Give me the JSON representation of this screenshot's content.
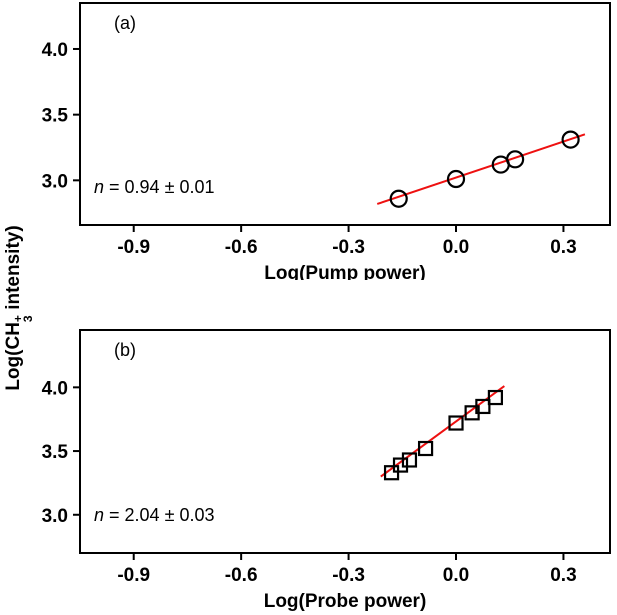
{
  "figure": {
    "y_axis_label": {
      "prefix": "Log(CH",
      "sup": "+",
      "sub": "3",
      "suffix": " intensity)"
    }
  },
  "colors": {
    "fit_line": "#ee1111",
    "marker": "#000000",
    "frame": "#000000",
    "background": "#ffffff"
  },
  "chart_data": [
    {
      "type": "scatter",
      "panel_label": "(a)",
      "marker": "circle",
      "marker_color": "#000000",
      "xlabel": "Log(Pump power)",
      "xlim": [
        -1.05,
        0.43
      ],
      "ylim": [
        2.66,
        4.35
      ],
      "xticks": [
        -0.9,
        -0.6,
        -0.3,
        0.0,
        0.3
      ],
      "xtick_labels": [
        "-0.9",
        "-0.6",
        "-0.3",
        "0.0",
        "0.3"
      ],
      "yticks": [
        3.0,
        3.5,
        4.0
      ],
      "ytick_labels": [
        "3.0",
        "3.5",
        "4.0"
      ],
      "points": [
        [
          -0.16,
          2.86
        ],
        [
          0.0,
          3.01
        ],
        [
          0.125,
          3.12
        ],
        [
          0.165,
          3.16
        ],
        [
          0.32,
          3.31
        ]
      ],
      "fit_line": {
        "x1": -0.22,
        "y1": 2.82,
        "x2": 0.36,
        "y2": 3.35,
        "color": "#ee1111"
      },
      "annotation": {
        "var": "n",
        "rest": " = 0.94 ± 0.01"
      }
    },
    {
      "type": "scatter",
      "panel_label": "(b)",
      "marker": "square",
      "marker_color": "#000000",
      "xlabel": "Log(Probe power)",
      "xlim": [
        -1.05,
        0.43
      ],
      "ylim": [
        2.7,
        4.45
      ],
      "xticks": [
        -0.9,
        -0.6,
        -0.3,
        0.0,
        0.3
      ],
      "xtick_labels": [
        "-0.9",
        "-0.6",
        "-0.3",
        "0.0",
        "0.3"
      ],
      "yticks": [
        3.0,
        3.5,
        4.0
      ],
      "ytick_labels": [
        "3.0",
        "3.5",
        "4.0"
      ],
      "points": [
        [
          -0.18,
          3.33
        ],
        [
          -0.155,
          3.39
        ],
        [
          -0.13,
          3.43
        ],
        [
          -0.085,
          3.52
        ],
        [
          0.0,
          3.72
        ],
        [
          0.045,
          3.8
        ],
        [
          0.075,
          3.85
        ],
        [
          0.11,
          3.92
        ]
      ],
      "fit_line": {
        "x1": -0.21,
        "y1": 3.3,
        "x2": 0.135,
        "y2": 4.01,
        "color": "#ee1111"
      },
      "annotation": {
        "var": "n",
        "rest": " = 2.04 ± 0.03"
      }
    }
  ]
}
